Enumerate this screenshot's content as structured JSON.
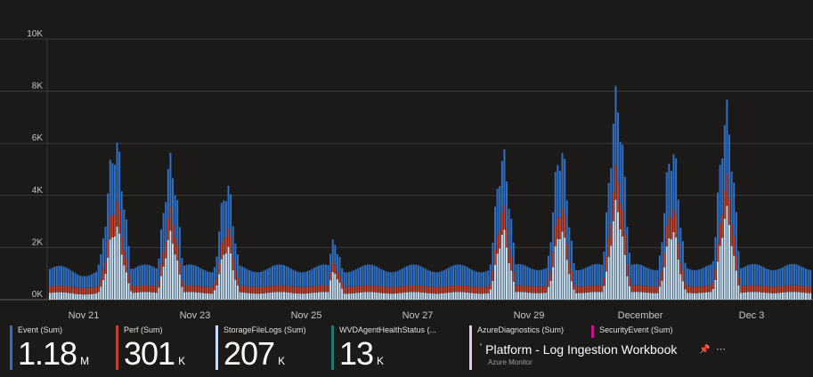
{
  "chart_data": {
    "type": "bar",
    "stacked": true,
    "y_ticks": [
      "10K",
      "8K",
      "6K",
      "4K",
      "2K",
      "0K"
    ],
    "ylim": [
      0,
      10000
    ],
    "x_ticks": [
      "Nov 21",
      "Nov 23",
      "Nov 25",
      "Nov 27",
      "Nov 29",
      "December",
      "Dec 3"
    ],
    "grid": true,
    "series": [
      {
        "name": "Event (Sum)",
        "color": "#2f6fc4"
      },
      {
        "name": "Perf (Sum)",
        "color": "#c0432f"
      },
      {
        "name": "StorageFileLogs (Sum)",
        "color": "#c5dff5"
      },
      {
        "name": "WVDAgentHealthStatus (...",
        "color": "#1f7a74"
      },
      {
        "name": "AzureDiagnostics (Sum)",
        "color": "#e8c6ee"
      },
      {
        "name": "SecurityEvent (Sum)",
        "color": "#c4128c"
      }
    ],
    "profile_note_total_hourly_approx": [
      1100,
      1200,
      1350,
      1500,
      1300,
      1100,
      1000,
      6400,
      1700,
      5600,
      1500,
      4700,
      1800,
      1400,
      1300,
      1350,
      2400,
      1300,
      1300,
      1200,
      1200,
      1350,
      1200,
      1300,
      5900,
      1300,
      6300,
      1300,
      8300,
      1300,
      6300,
      1300,
      7700,
      1300,
      1200
    ]
  },
  "legend": [
    {
      "name": "Event (Sum)",
      "value": "1.18",
      "unit": "M",
      "color": "#2f6fc4"
    },
    {
      "name": "Perf (Sum)",
      "value": "301",
      "unit": "K",
      "color": "#c0432f"
    },
    {
      "name": "StorageFileLogs (Sum)",
      "value": "207",
      "unit": "K",
      "color": "#c5dff5"
    },
    {
      "name": "WVDAgentHealthStatus (...",
      "value": "13",
      "unit": "K",
      "color": "#1f7a74"
    },
    {
      "name": "AzureDiagnostics (Sum)",
      "value": "",
      "unit": "",
      "color": "#e8c6ee"
    },
    {
      "name": "SecurityEvent (Sum)",
      "value": "",
      "unit": "",
      "color": "#c4128c"
    }
  ],
  "workbook": {
    "title": "Platform - Log Ingestion Workbook",
    "subtitle": "Azure Monitor",
    "pin_icon": "pin-icon",
    "more_icon": "more-icon"
  }
}
